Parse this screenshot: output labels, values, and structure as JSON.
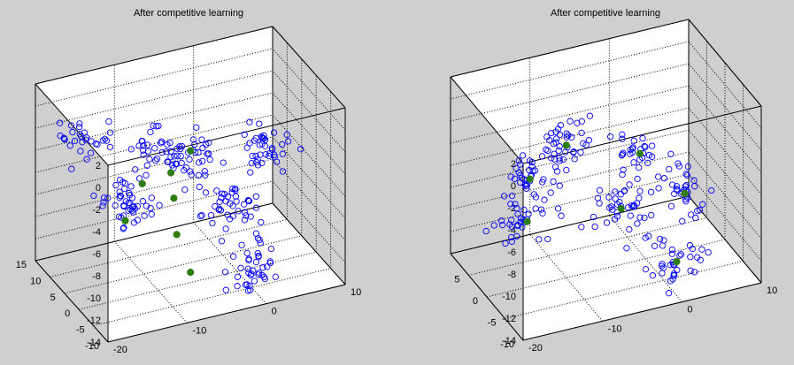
{
  "figure": {
    "background": "#cfcfcf"
  },
  "chart_data": [
    {
      "type": "scatter3d",
      "title": "After competitive learning",
      "xlabel": "",
      "ylabel": "",
      "zlabel": "",
      "xlim": [
        -20,
        10
      ],
      "ylim": [
        -10,
        15
      ],
      "zlim": [
        -14,
        2
      ],
      "x_ticks": [
        -20,
        -10,
        0,
        10
      ],
      "y_ticks": [
        -10,
        -5,
        0,
        5,
        10,
        15
      ],
      "z_ticks": [
        -14,
        -12,
        -10,
        -8,
        -6,
        -4,
        -2,
        0,
        2
      ],
      "grid": true,
      "colors": {
        "data": "#0000ff",
        "centers": "#2e7d0f"
      },
      "clusters": [
        {
          "x": -10,
          "y": 10,
          "z": -9,
          "n": 48
        },
        {
          "x": 5,
          "y": 5,
          "z": -5,
          "n": 40
        },
        {
          "x": -3,
          "y": -5,
          "z": -6,
          "n": 42
        },
        {
          "x": -12,
          "y": -3,
          "z": 0,
          "n": 28
        },
        {
          "x": 0,
          "y": -6,
          "z": -12,
          "n": 40
        },
        {
          "x": -18,
          "y": 5,
          "z": 0,
          "n": 30
        },
        {
          "x": -4,
          "y": 6,
          "z": -5,
          "n": 40
        }
      ],
      "centers": [
        {
          "x": -9,
          "y": 14,
          "z": -12
        },
        {
          "x": -7,
          "y": -3,
          "z": -1
        },
        {
          "x": -12,
          "y": 0,
          "z": -4
        },
        {
          "x": -8,
          "y": 1,
          "z": -4
        },
        {
          "x": -8,
          "y": 0,
          "z": -6
        },
        {
          "x": -8,
          "y": -1,
          "z": -9
        },
        {
          "x": -7,
          "y": -3,
          "z": -12
        }
      ]
    },
    {
      "type": "scatter3d",
      "title": "After competitive learning",
      "xlabel": "",
      "ylabel": "",
      "zlabel": "",
      "xlim": [
        -20,
        10
      ],
      "ylim": [
        -10,
        10
      ],
      "zlim": [
        -14,
        2
      ],
      "x_ticks": [
        -20,
        -10,
        0,
        10
      ],
      "y_ticks": [
        -10,
        -5,
        0,
        5
      ],
      "z_ticks": [
        -14,
        -12,
        -10,
        -8,
        -6,
        -4,
        -2,
        0,
        2
      ],
      "grid": true,
      "colors": {
        "data": "#0000ff",
        "centers": "#2e7d0f"
      },
      "clusters": [
        {
          "x": -10,
          "y": 10,
          "z": -9,
          "n": 40
        },
        {
          "x": -10,
          "y": 0,
          "z": -2,
          "n": 38
        },
        {
          "x": -3,
          "y": -5,
          "z": -2,
          "n": 30
        },
        {
          "x": -14,
          "y": 2,
          "z": -9,
          "n": 32
        },
        {
          "x": -4,
          "y": -2,
          "z": -8,
          "n": 38
        },
        {
          "x": 4,
          "y": -2,
          "z": -8,
          "n": 34
        },
        {
          "x": 3,
          "y": -2,
          "z": -14,
          "n": 36
        }
      ],
      "centers": [
        {
          "x": -10,
          "y": 10,
          "z": -9
        },
        {
          "x": -10,
          "y": 0,
          "z": -2
        },
        {
          "x": -3,
          "y": -5,
          "z": -2
        },
        {
          "x": -14,
          "y": 2,
          "z": -9
        },
        {
          "x": -4,
          "y": -2,
          "z": -8
        },
        {
          "x": 4,
          "y": -2,
          "z": -8
        },
        {
          "x": 3,
          "y": -2,
          "z": -14
        }
      ]
    }
  ]
}
